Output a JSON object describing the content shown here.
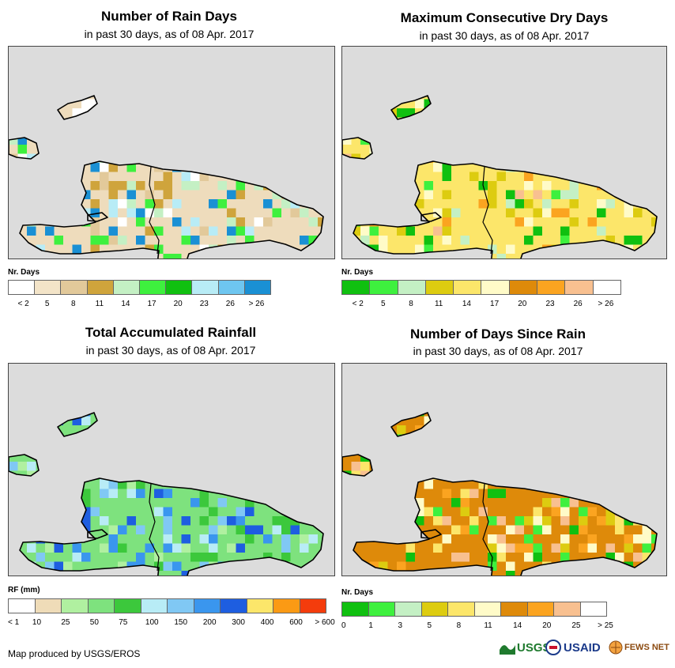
{
  "panels": [
    {
      "title": "Number of Rain Days",
      "subtitle": "in past 30 days, as of 08 Apr. 2017",
      "legend_title": "Nr. Days",
      "legend_colors": [
        "#ffffff",
        "#f3e4c8",
        "#e2c99a",
        "#cfa43c",
        "#c4f0c4",
        "#3ef03e",
        "#10c010",
        "#b8ecf6",
        "#6ec6f0",
        "#1a90d4"
      ],
      "legend_ticks": [
        "< 2",
        "5",
        "8",
        "11",
        "14",
        "17",
        "20",
        "23",
        "26",
        "> 26"
      ],
      "tick_mode": "center",
      "base_color": "#eedcbc",
      "accent_colors": [
        "#cfa43c",
        "#e2c99a",
        "#ffffff",
        "#c4f0c4",
        "#1a90d4",
        "#b8ecf6",
        "#3ef03e"
      ]
    },
    {
      "title": "Maximum Consecutive Dry Days",
      "subtitle": "in past 30 days, as of 08 Apr. 2017",
      "legend_title": "Nr. Days",
      "legend_colors": [
        "#10c010",
        "#3ef03e",
        "#c4f0c4",
        "#ddcc10",
        "#fce66a",
        "#fffbc8",
        "#de8a0a",
        "#fba420",
        "#f8c090",
        "#ffffff"
      ],
      "legend_ticks": [
        "< 2",
        "5",
        "8",
        "11",
        "14",
        "17",
        "20",
        "23",
        "26",
        "> 26"
      ],
      "tick_mode": "center",
      "base_color": "#fce66a",
      "accent_colors": [
        "#fffbc8",
        "#ddcc10",
        "#fba420",
        "#3ef03e",
        "#c4f0c4",
        "#f8c090",
        "#10c010"
      ]
    },
    {
      "title": "Total Accumulated Rainfall",
      "subtitle": "in past 30 days, as of 08 Apr. 2017",
      "legend_title": "RF (mm)",
      "legend_colors": [
        "#ffffff",
        "#efdcb8",
        "#b0f0a0",
        "#7ee27e",
        "#3cc83c",
        "#b8ecf6",
        "#80c8f4",
        "#3a96ee",
        "#1e5ee0",
        "#fce66a",
        "#fb9a14",
        "#f43c0c"
      ],
      "legend_ticks": [
        "< 1",
        "10",
        "25",
        "50",
        "75",
        "100",
        "150",
        "200",
        "300",
        "400",
        "600",
        "> 600"
      ],
      "tick_mode": "edge",
      "base_color": "#7ee27e",
      "accent_colors": [
        "#3cc83c",
        "#b0f0a0",
        "#b8ecf6",
        "#80c8f4",
        "#1e5ee0",
        "#3a96ee"
      ]
    },
    {
      "title": "Number of Days Since Rain",
      "subtitle": "in past 30 days, as of 08 Apr. 2017",
      "legend_title": "Nr. Days",
      "legend_colors": [
        "#10c010",
        "#3ef03e",
        "#c4f0c4",
        "#ddcc10",
        "#fce66a",
        "#fffbc8",
        "#de8a0a",
        "#fba420",
        "#f8c090",
        "#ffffff"
      ],
      "legend_ticks": [
        "0",
        "1",
        "3",
        "5",
        "8",
        "11",
        "14",
        "20",
        "25",
        "> 25"
      ],
      "tick_mode": "edge",
      "base_color": "#de8a0a",
      "accent_colors": [
        "#fba420",
        "#fce66a",
        "#ddcc10",
        "#f8c090",
        "#fffbc8",
        "#3ef03e",
        "#10c010"
      ]
    }
  ],
  "footer": {
    "credit": "Map produced by USGS/EROS",
    "logos": [
      "USGS",
      "USAID",
      "FEWS NET"
    ]
  },
  "chart_data": [
    {
      "type": "heatmap",
      "title": "Number of Rain Days",
      "subtitle": "in past 30 days, as of 08 Apr. 2017",
      "legend_title": "Nr. Days",
      "legend_classes": [
        "< 2",
        "5",
        "8",
        "11",
        "14",
        "17",
        "20",
        "23",
        "26",
        "> 26"
      ]
    },
    {
      "type": "heatmap",
      "title": "Maximum Consecutive Dry Days",
      "subtitle": "in past 30 days, as of 08 Apr. 2017",
      "legend_title": "Nr. Days",
      "legend_classes": [
        "< 2",
        "5",
        "8",
        "11",
        "14",
        "17",
        "20",
        "23",
        "26",
        "> 26"
      ]
    },
    {
      "type": "heatmap",
      "title": "Total Accumulated Rainfall",
      "subtitle": "in past 30 days, as of 08 Apr. 2017",
      "legend_title": "RF (mm)",
      "legend_classes": [
        "< 1",
        "10",
        "25",
        "50",
        "75",
        "100",
        "150",
        "200",
        "300",
        "400",
        "600",
        "> 600"
      ]
    },
    {
      "type": "heatmap",
      "title": "Number of Days Since Rain",
      "subtitle": "in past 30 days, as of 08 Apr. 2017",
      "legend_title": "Nr. Days",
      "legend_classes": [
        "0",
        "1",
        "3",
        "5",
        "8",
        "11",
        "14",
        "20",
        "25",
        "> 25"
      ]
    }
  ]
}
